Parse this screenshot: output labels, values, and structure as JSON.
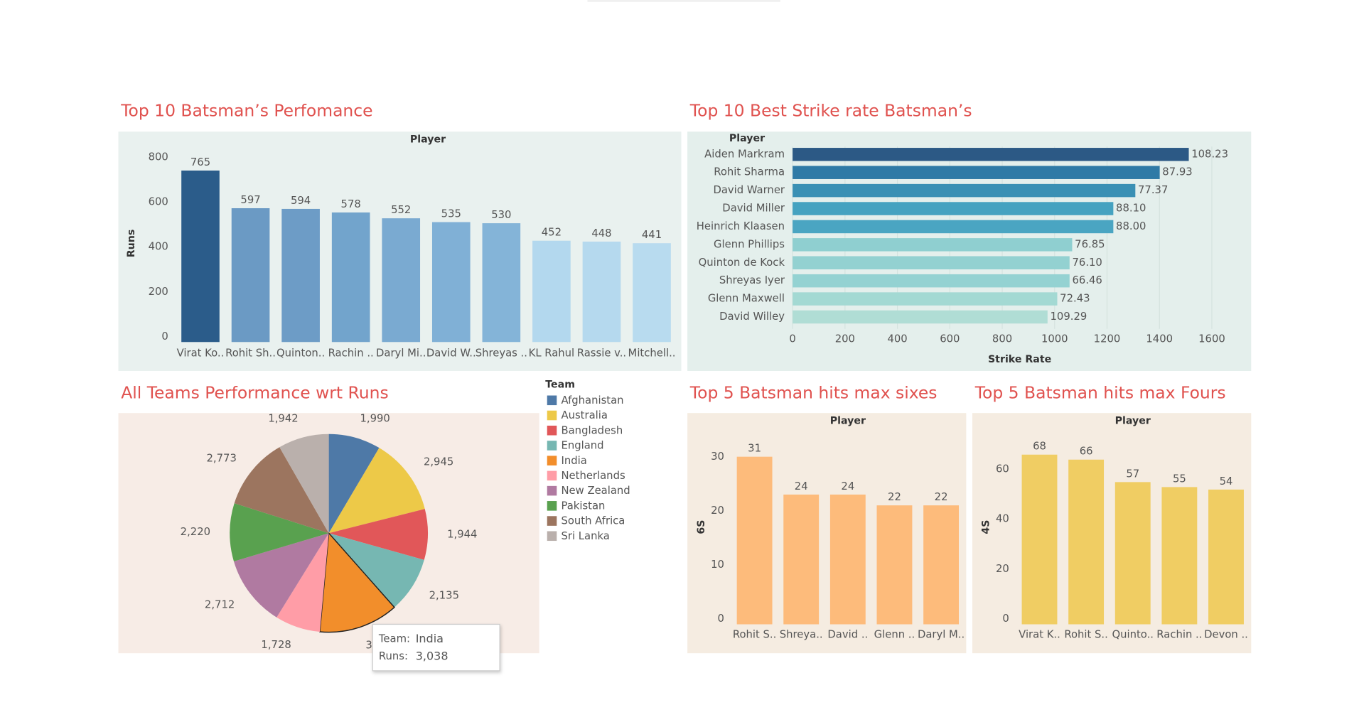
{
  "chart_data": [
    {
      "type": "bar",
      "title": "Top 10 Batsman’s Perfomance",
      "header": "Player",
      "y_label": "Runs",
      "categories": [
        "Virat Ko..",
        "Rohit Sh..",
        "Quinton..",
        "Rachin ..",
        "Daryl Mi..",
        "David W..",
        "Shreyas ..",
        "KL Rahul",
        "Rassie v..",
        "Mitchell.."
      ],
      "values": [
        765,
        597,
        594,
        578,
        552,
        535,
        530,
        452,
        448,
        441
      ],
      "colors": [
        "#2b5c8a",
        "#6b9ac4",
        "#6d9cc6",
        "#72a4cc",
        "#7aaad1",
        "#80b0d6",
        "#84b4d8",
        "#b3d8ee",
        "#b5d9ee",
        "#b8dbef"
      ],
      "ylim": [
        0,
        880
      ],
      "yticks": [
        0,
        200,
        400,
        600,
        800
      ],
      "grid": false
    },
    {
      "type": "hbar",
      "title": "Top 10 Best Strike rate Batsman’s",
      "header": "Player",
      "x_label": "Strike Rate",
      "categories": [
        "Aiden Markram",
        "Rohit Sharma",
        "David Warner",
        "David Miller",
        "Heinrich Klaasen",
        "Glenn Phillips",
        "Quinton de Kock",
        "Shreyas Iyer",
        "Glenn Maxwell",
        "David Willey"
      ],
      "values": [
        1512,
        1401,
        1308,
        1224,
        1224,
        1067,
        1057,
        1057,
        1010,
        973
      ],
      "bar_labels": [
        "108.23",
        "87.93",
        "77.37",
        "88.10",
        "88.00",
        "76.85",
        "76.10",
        "66.46",
        "72.43",
        "109.29"
      ],
      "colors": [
        "#2c5985",
        "#2f7aa6",
        "#3a90b4",
        "#45a2c0",
        "#4aa5c2",
        "#8fcfd0",
        "#93d1d1",
        "#94d2d2",
        "#a3d9d3",
        "#b0ddd5"
      ],
      "xlim": [
        0,
        1740
      ],
      "xticks": [
        0,
        200,
        400,
        600,
        800,
        1000,
        1200,
        1400,
        1600
      ],
      "grid": true
    },
    {
      "type": "pie",
      "title": "All Teams Performance wrt Runs",
      "legend_title": "Team",
      "categories": [
        "Afghanistan",
        "Australia",
        "Bangladesh",
        "England",
        "India",
        "Netherlands",
        "New Zealand",
        "Pakistan",
        "South Africa",
        "Sri Lanka"
      ],
      "values": [
        1990,
        2945,
        1944,
        2135,
        3038,
        1728,
        2712,
        2220,
        2773,
        1942
      ],
      "value_labels": [
        "1,990",
        "2,945",
        "1,944",
        "2,135",
        "3,038",
        "1,728",
        "2,712",
        "2,220",
        "2,773",
        "1,942"
      ],
      "colors": [
        "#4e79a7",
        "#edc948",
        "#e15759",
        "#76b7b2",
        "#f28e2b",
        "#ff9da7",
        "#b07aa1",
        "#59a14f",
        "#9c755f",
        "#bab0ac"
      ]
    },
    {
      "type": "bar",
      "title": "Top 5 Batsman hits max sixes",
      "header": "Player",
      "y_label": "6S",
      "categories": [
        "Rohit S..",
        "Shreya..",
        "David ..",
        "Glenn ..",
        "Daryl M.."
      ],
      "values": [
        31,
        24,
        24,
        22,
        22
      ],
      "color": "#fdbb7b",
      "ylim": [
        0,
        36
      ],
      "yticks": [
        0,
        10,
        20,
        30
      ],
      "grid": false
    },
    {
      "type": "bar",
      "title": "Top 5 Batsman hits max Fours",
      "header": "Player",
      "y_label": "4S",
      "categories": [
        "Virat K..",
        "Rohit S..",
        "Quinto..",
        "Rachin ..",
        "Devon .."
      ],
      "values": [
        68,
        66,
        57,
        55,
        54
      ],
      "color": "#f0cd63",
      "ylim": [
        0,
        78
      ],
      "yticks": [
        0,
        20,
        40,
        60
      ],
      "grid": false
    }
  ],
  "tooltip": {
    "team_label": "Team:",
    "team": "India",
    "runs_label": "Runs:",
    "runs": "3,038"
  }
}
